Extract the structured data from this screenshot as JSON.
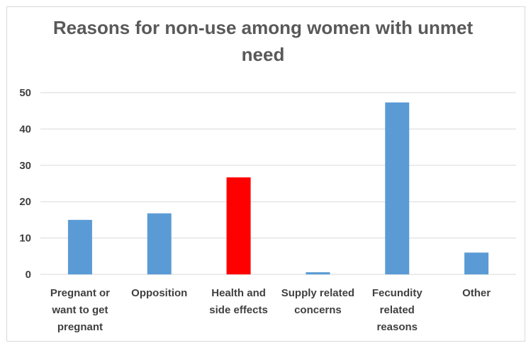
{
  "chart_data": {
    "type": "bar",
    "title_lines": [
      "Reasons for non-use among women with unmet",
      "need"
    ],
    "categories": [
      [
        "Pregnant or",
        "want to get",
        "pregnant"
      ],
      [
        "Opposition"
      ],
      [
        "Health and",
        "side effects"
      ],
      [
        "Supply related",
        "concerns"
      ],
      [
        "Fecundity",
        "related",
        "reasons"
      ],
      [
        "Other"
      ]
    ],
    "values": [
      15,
      16.8,
      26.7,
      0.6,
      47.3,
      6
    ],
    "bar_colors": [
      "#5b9bd5",
      "#5b9bd5",
      "#ff0000",
      "#5b9bd5",
      "#5b9bd5",
      "#5b9bd5"
    ],
    "ylim": [
      0,
      50
    ],
    "yticks": [
      0,
      10,
      20,
      30,
      40,
      50
    ],
    "grid": true,
    "legend": "none",
    "colors": {
      "bar": "#5b9bd5",
      "highlight": "#ff0000",
      "grid": "#d9d9d9",
      "text": "#404040"
    }
  }
}
